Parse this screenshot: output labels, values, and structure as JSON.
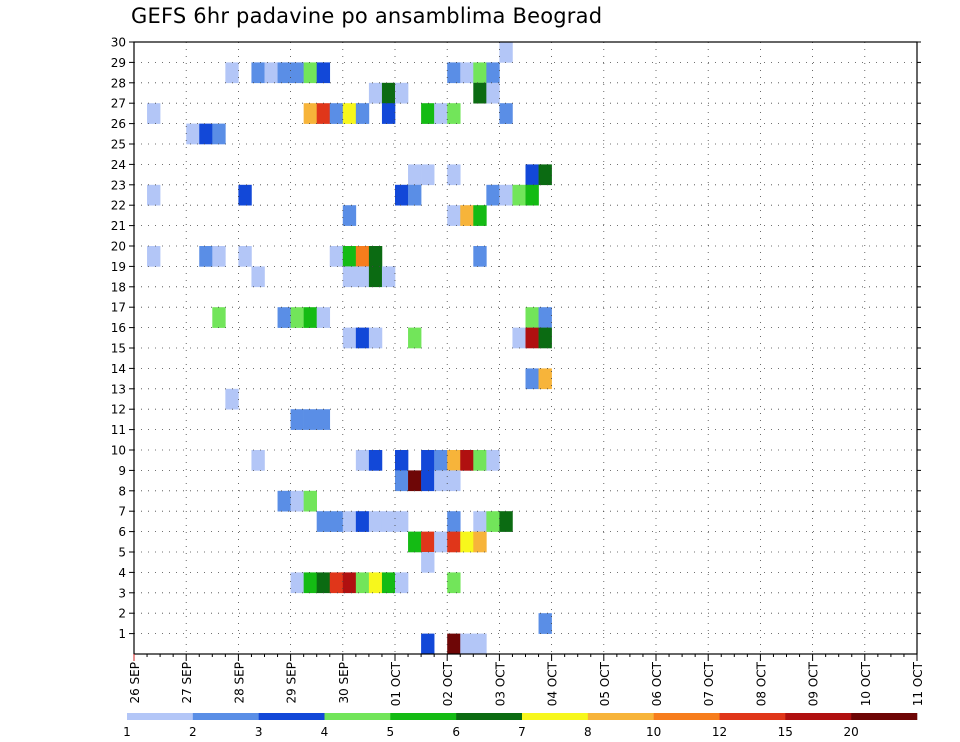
{
  "title": "GEFS 6hr padavine po ansamblima Beograd",
  "chart_data": {
    "type": "heatmap",
    "title": "GEFS 6hr padavine po ansamblima Beograd",
    "x_ticks": [
      "26 SEP",
      "27 SEP",
      "28 SEP",
      "29 SEP",
      "30 SEP",
      "01 OCT",
      "02 OCT",
      "03 OCT",
      "04 OCT",
      "05 OCT",
      "06 OCT",
      "07 OCT",
      "08 OCT",
      "09 OCT",
      "10 OCT",
      "11 OCT"
    ],
    "y_ticks": [
      "1",
      "2",
      "3",
      "4",
      "5",
      "6",
      "7",
      "8",
      "9",
      "10",
      "11",
      "12",
      "13",
      "14",
      "15",
      "16",
      "17",
      "18",
      "19",
      "20",
      "21",
      "22",
      "23",
      "24",
      "25",
      "26",
      "27",
      "28",
      "29",
      "30"
    ],
    "steps_per_day": 4,
    "ylim": [
      0,
      30
    ],
    "grid": true,
    "color_scale": {
      "levels": [
        "1",
        "2",
        "3",
        "4",
        "5",
        "6",
        "7",
        "8",
        "10",
        "12",
        "15",
        "20"
      ],
      "colors": [
        "#b3c6f7",
        "#5a8ee6",
        "#1248d8",
        "#72e55a",
        "#14bb14",
        "#0b6b12",
        "#f7f71c",
        "#f7b43a",
        "#f77d1c",
        "#e0361a",
        "#b01010",
        "#6e0606"
      ]
    },
    "cells": [
      {
        "m": 30,
        "s": 28,
        "c": 0
      },
      {
        "m": 29,
        "s": 7,
        "c": 0
      },
      {
        "m": 29,
        "s": 9,
        "c": 1
      },
      {
        "m": 29,
        "s": 10,
        "c": 0
      },
      {
        "m": 29,
        "s": 11,
        "c": 1
      },
      {
        "m": 29,
        "s": 12,
        "c": 1
      },
      {
        "m": 29,
        "s": 13,
        "c": 3
      },
      {
        "m": 29,
        "s": 14,
        "c": 2
      },
      {
        "m": 29,
        "s": 24,
        "c": 1
      },
      {
        "m": 29,
        "s": 25,
        "c": 0
      },
      {
        "m": 29,
        "s": 26,
        "c": 3
      },
      {
        "m": 29,
        "s": 27,
        "c": 1
      },
      {
        "m": 28,
        "s": 18,
        "c": 0
      },
      {
        "m": 28,
        "s": 19,
        "c": 5
      },
      {
        "m": 28,
        "s": 20,
        "c": 0
      },
      {
        "m": 28,
        "s": 26,
        "c": 5
      },
      {
        "m": 28,
        "s": 27,
        "c": 0
      },
      {
        "m": 27,
        "s": 1,
        "c": 0
      },
      {
        "m": 27,
        "s": 13,
        "c": 7
      },
      {
        "m": 27,
        "s": 14,
        "c": 9
      },
      {
        "m": 27,
        "s": 15,
        "c": 1
      },
      {
        "m": 27,
        "s": 16,
        "c": 6
      },
      {
        "m": 27,
        "s": 17,
        "c": 1
      },
      {
        "m": 27,
        "s": 19,
        "c": 2
      },
      {
        "m": 27,
        "s": 22,
        "c": 4
      },
      {
        "m": 27,
        "s": 23,
        "c": 0
      },
      {
        "m": 27,
        "s": 24,
        "c": 3
      },
      {
        "m": 27,
        "s": 28,
        "c": 1
      },
      {
        "m": 26,
        "s": 4,
        "c": 0
      },
      {
        "m": 26,
        "s": 5,
        "c": 2
      },
      {
        "m": 26,
        "s": 6,
        "c": 1
      },
      {
        "m": 24,
        "s": 21,
        "c": 0
      },
      {
        "m": 24,
        "s": 22,
        "c": 0
      },
      {
        "m": 24,
        "s": 24,
        "c": 0
      },
      {
        "m": 24,
        "s": 30,
        "c": 2
      },
      {
        "m": 24,
        "s": 31,
        "c": 5
      },
      {
        "m": 23,
        "s": 1,
        "c": 0
      },
      {
        "m": 23,
        "s": 8,
        "c": 2
      },
      {
        "m": 23,
        "s": 20,
        "c": 2
      },
      {
        "m": 23,
        "s": 21,
        "c": 1
      },
      {
        "m": 23,
        "s": 27,
        "c": 1
      },
      {
        "m": 23,
        "s": 28,
        "c": 0
      },
      {
        "m": 23,
        "s": 29,
        "c": 3
      },
      {
        "m": 23,
        "s": 30,
        "c": 4
      },
      {
        "m": 22,
        "s": 16,
        "c": 1
      },
      {
        "m": 22,
        "s": 24,
        "c": 0
      },
      {
        "m": 22,
        "s": 25,
        "c": 7
      },
      {
        "m": 22,
        "s": 26,
        "c": 4
      },
      {
        "m": 20,
        "s": 1,
        "c": 0
      },
      {
        "m": 20,
        "s": 5,
        "c": 1
      },
      {
        "m": 20,
        "s": 6,
        "c": 0
      },
      {
        "m": 20,
        "s": 8,
        "c": 0
      },
      {
        "m": 20,
        "s": 15,
        "c": 0
      },
      {
        "m": 20,
        "s": 16,
        "c": 4
      },
      {
        "m": 20,
        "s": 17,
        "c": 8
      },
      {
        "m": 20,
        "s": 18,
        "c": 5
      },
      {
        "m": 20,
        "s": 26,
        "c": 1
      },
      {
        "m": 19,
        "s": 9,
        "c": 0
      },
      {
        "m": 19,
        "s": 16,
        "c": 0
      },
      {
        "m": 19,
        "s": 17,
        "c": 0
      },
      {
        "m": 19,
        "s": 18,
        "c": 5
      },
      {
        "m": 19,
        "s": 19,
        "c": 0
      },
      {
        "m": 17,
        "s": 6,
        "c": 3
      },
      {
        "m": 17,
        "s": 11,
        "c": 1
      },
      {
        "m": 17,
        "s": 12,
        "c": 3
      },
      {
        "m": 17,
        "s": 13,
        "c": 4
      },
      {
        "m": 17,
        "s": 14,
        "c": 0
      },
      {
        "m": 17,
        "s": 30,
        "c": 3
      },
      {
        "m": 17,
        "s": 31,
        "c": 1
      },
      {
        "m": 16,
        "s": 16,
        "c": 0
      },
      {
        "m": 16,
        "s": 17,
        "c": 2
      },
      {
        "m": 16,
        "s": 18,
        "c": 0
      },
      {
        "m": 16,
        "s": 21,
        "c": 3
      },
      {
        "m": 16,
        "s": 29,
        "c": 0
      },
      {
        "m": 16,
        "s": 30,
        "c": 10
      },
      {
        "m": 16,
        "s": 31,
        "c": 5
      },
      {
        "m": 14,
        "s": 30,
        "c": 1
      },
      {
        "m": 14,
        "s": 31,
        "c": 7
      },
      {
        "m": 13,
        "s": 7,
        "c": 0
      },
      {
        "m": 12,
        "s": 12,
        "c": 1
      },
      {
        "m": 12,
        "s": 13,
        "c": 1
      },
      {
        "m": 12,
        "s": 14,
        "c": 1
      },
      {
        "m": 10,
        "s": 9,
        "c": 0
      },
      {
        "m": 10,
        "s": 17,
        "c": 0
      },
      {
        "m": 10,
        "s": 18,
        "c": 2
      },
      {
        "m": 10,
        "s": 20,
        "c": 2
      },
      {
        "m": 10,
        "s": 22,
        "c": 2
      },
      {
        "m": 10,
        "s": 23,
        "c": 1
      },
      {
        "m": 10,
        "s": 24,
        "c": 7
      },
      {
        "m": 10,
        "s": 25,
        "c": 10
      },
      {
        "m": 10,
        "s": 26,
        "c": 3
      },
      {
        "m": 10,
        "s": 27,
        "c": 0
      },
      {
        "m": 9,
        "s": 20,
        "c": 1
      },
      {
        "m": 9,
        "s": 21,
        "c": 11
      },
      {
        "m": 9,
        "s": 22,
        "c": 2
      },
      {
        "m": 9,
        "s": 23,
        "c": 0
      },
      {
        "m": 9,
        "s": 24,
        "c": 0
      },
      {
        "m": 8,
        "s": 11,
        "c": 1
      },
      {
        "m": 8,
        "s": 12,
        "c": 0
      },
      {
        "m": 8,
        "s": 13,
        "c": 3
      },
      {
        "m": 7,
        "s": 14,
        "c": 1
      },
      {
        "m": 7,
        "s": 15,
        "c": 1
      },
      {
        "m": 7,
        "s": 16,
        "c": 0
      },
      {
        "m": 7,
        "s": 17,
        "c": 2
      },
      {
        "m": 7,
        "s": 18,
        "c": 0
      },
      {
        "m": 7,
        "s": 19,
        "c": 0
      },
      {
        "m": 7,
        "s": 20,
        "c": 0
      },
      {
        "m": 7,
        "s": 24,
        "c": 1
      },
      {
        "m": 7,
        "s": 26,
        "c": 0
      },
      {
        "m": 7,
        "s": 27,
        "c": 3
      },
      {
        "m": 7,
        "s": 28,
        "c": 5
      },
      {
        "m": 6,
        "s": 21,
        "c": 4
      },
      {
        "m": 6,
        "s": 22,
        "c": 9
      },
      {
        "m": 6,
        "s": 23,
        "c": 0
      },
      {
        "m": 6,
        "s": 24,
        "c": 9
      },
      {
        "m": 6,
        "s": 25,
        "c": 6
      },
      {
        "m": 6,
        "s": 26,
        "c": 7
      },
      {
        "m": 5,
        "s": 22,
        "c": 0
      },
      {
        "m": 4,
        "s": 12,
        "c": 0
      },
      {
        "m": 4,
        "s": 13,
        "c": 4
      },
      {
        "m": 4,
        "s": 14,
        "c": 5
      },
      {
        "m": 4,
        "s": 15,
        "c": 9
      },
      {
        "m": 4,
        "s": 16,
        "c": 10
      },
      {
        "m": 4,
        "s": 17,
        "c": 3
      },
      {
        "m": 4,
        "s": 18,
        "c": 6
      },
      {
        "m": 4,
        "s": 19,
        "c": 4
      },
      {
        "m": 4,
        "s": 20,
        "c": 0
      },
      {
        "m": 4,
        "s": 24,
        "c": 3
      },
      {
        "m": 2,
        "s": 31,
        "c": 1
      },
      {
        "m": 1,
        "s": 22,
        "c": 2
      },
      {
        "m": 1,
        "s": 24,
        "c": 11
      },
      {
        "m": 1,
        "s": 25,
        "c": 0
      },
      {
        "m": 1,
        "s": 26,
        "c": 0
      }
    ]
  }
}
